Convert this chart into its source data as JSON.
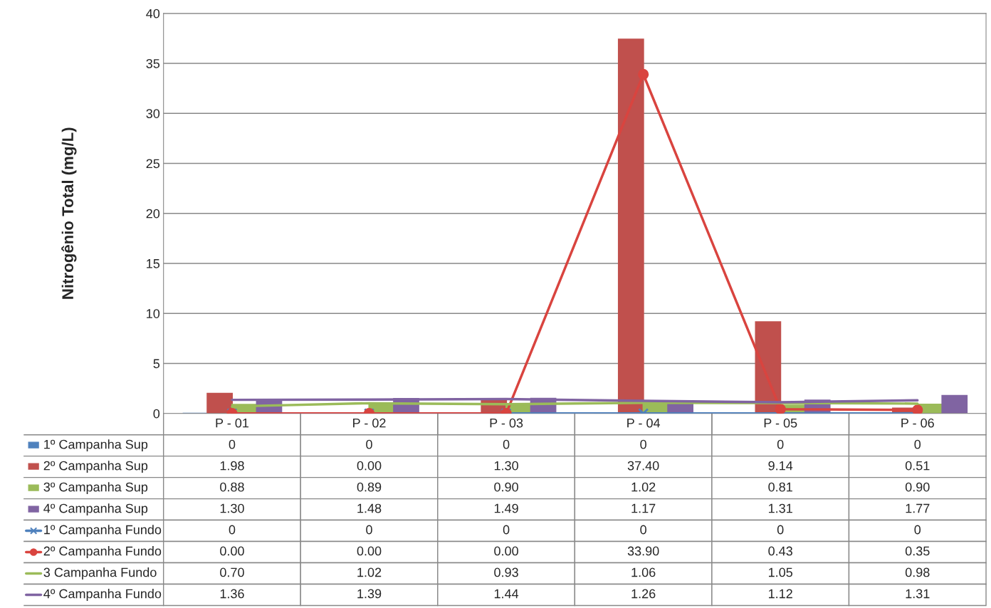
{
  "chart_data": {
    "type": "bar",
    "ylabel": "Nitrogênio Total (mg/L)",
    "categories": [
      "P - 01",
      "P - 02",
      "P - 03",
      "P - 04",
      "P - 05",
      "P - 06"
    ],
    "ylim": [
      0,
      40
    ],
    "yticks": [
      0,
      5,
      10,
      15,
      20,
      25,
      30,
      35,
      40
    ],
    "grid": "y",
    "legend": "bottom left",
    "series": [
      {
        "name": "1º Campanha Sup",
        "color": "#4f81bd",
        "values": [
          0,
          0,
          0,
          0,
          0,
          0
        ],
        "value_labels": [
          "0",
          "0",
          "0",
          "0",
          "0",
          "0"
        ]
      },
      {
        "name": "2º Campanha Sup",
        "color": "#c0504d",
        "values": [
          1.98,
          0.0,
          1.3,
          37.4,
          9.14,
          0.51
        ],
        "value_labels": [
          "1.98",
          "0.00",
          "1.30",
          "37.40",
          "9.14",
          "0.51"
        ]
      },
      {
        "name": "3º Campanha Sup",
        "color": "#9bbb59",
        "values": [
          0.88,
          0.89,
          0.9,
          1.02,
          0.81,
          0.9
        ],
        "value_labels": [
          "0.88",
          "0.89",
          "0.90",
          "1.02",
          "0.81",
          "0.90"
        ]
      },
      {
        "name": "4º Campanha Sup",
        "color": "#8064a2",
        "values": [
          1.3,
          1.48,
          1.49,
          1.17,
          1.31,
          1.77
        ],
        "value_labels": [
          "1.30",
          "1.48",
          "1.49",
          "1.17",
          "1.31",
          "1.77"
        ]
      },
      {
        "name": "1º Campanha Fundo",
        "type": "line",
        "color": "#4f81bd",
        "marker": "cross",
        "values": [
          0,
          0,
          0,
          0,
          0,
          0
        ],
        "value_labels": [
          "0",
          "0",
          "0",
          "0",
          "0",
          "0"
        ]
      },
      {
        "name": "2º Campanha Fundo",
        "type": "line",
        "color": "#d9443f",
        "marker": "circle",
        "values": [
          0.0,
          0.0,
          0.0,
          33.9,
          0.43,
          0.35
        ],
        "value_labels": [
          "0.00",
          "0.00",
          "0.00",
          "33.90",
          "0.43",
          "0.35"
        ]
      },
      {
        "name": "3 Campanha Fundo",
        "type": "line",
        "color": "#9bbb59",
        "values": [
          0.7,
          1.02,
          0.93,
          1.06,
          1.05,
          0.98
        ],
        "value_labels": [
          "0.70",
          "1.02",
          "0.93",
          "1.06",
          "1.05",
          "0.98"
        ]
      },
      {
        "name": "4º Campanha Fundo",
        "type": "line",
        "color": "#8064a2",
        "values": [
          1.36,
          1.39,
          1.44,
          1.26,
          1.12,
          1.31
        ],
        "value_labels": [
          "1.36",
          "1.39",
          "1.44",
          "1.26",
          "1.12",
          "1.31"
        ]
      }
    ]
  }
}
